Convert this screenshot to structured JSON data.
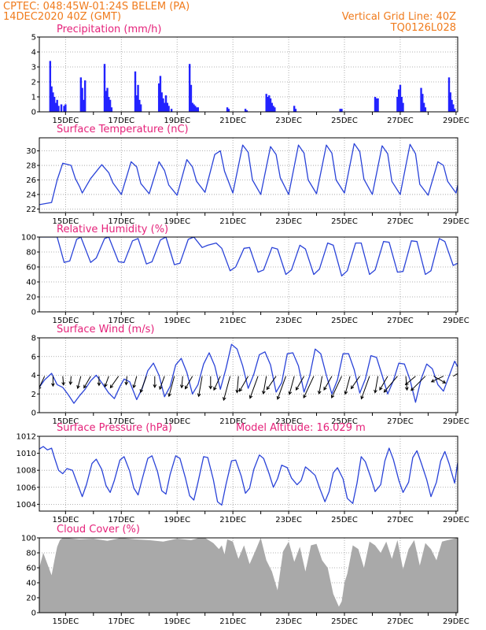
{
  "header": {
    "line1": "CPTEC:   048:45W-01:24S   BELEM (PA)",
    "line2": "14DEC2020 40Z (GMT)",
    "right1": "Vertical Grid Line: 40Z",
    "right2": "TQ0126L028"
  },
  "colors": {
    "header": "#f07b1c",
    "panel_title": "#e5227a",
    "series_line": "#2a43d8",
    "bar": "#2323ff",
    "cloud_fill": "#a9a9a9",
    "wind_arrow": "#000000"
  },
  "x_axis": {
    "tick_labels": [
      "15DEC",
      "17DEC",
      "19DEC",
      "21DEC",
      "23DEC",
      "25DEC",
      "27DEC",
      "29DEC"
    ],
    "tick_days": [
      15,
      17,
      19,
      21,
      23,
      25,
      27,
      29
    ],
    "minor_tick_days": [
      16,
      18,
      20,
      22,
      24,
      26,
      28
    ],
    "range_days": [
      14.06,
      29.06
    ]
  },
  "chart_data": [
    {
      "id": "precip",
      "type": "bar",
      "title": "Precipitation (mm/h)",
      "ylim": [
        0,
        5
      ],
      "yticks": [
        0,
        1,
        2,
        3,
        4,
        5
      ],
      "grid": true,
      "x_units": "days (December 2020)",
      "x": [
        14.45,
        14.5,
        14.55,
        14.6,
        14.65,
        14.7,
        14.75,
        14.85,
        14.95,
        15.0,
        15.55,
        15.6,
        15.65,
        15.7,
        16.4,
        16.45,
        16.5,
        16.55,
        16.6,
        16.65,
        17.5,
        17.55,
        17.6,
        17.65,
        17.7,
        18.35,
        18.4,
        18.45,
        18.5,
        18.55,
        18.6,
        18.65,
        18.7,
        18.8,
        19.45,
        19.5,
        19.55,
        19.6,
        19.65,
        19.7,
        19.75,
        20.8,
        20.85,
        21.45,
        21.5,
        22.2,
        22.25,
        22.3,
        22.35,
        22.4,
        22.45,
        22.5,
        23.2,
        23.25,
        24.85,
        24.9,
        26.1,
        26.15,
        26.2,
        26.9,
        26.95,
        27.0,
        27.05,
        27.1,
        27.75,
        27.8,
        27.85,
        27.9,
        28.75,
        28.8,
        28.85,
        28.9,
        28.95
      ],
      "values": [
        3.4,
        1.7,
        1.3,
        1.0,
        0.6,
        0.8,
        0.4,
        0.5,
        0.4,
        0.5,
        2.3,
        1.6,
        0.8,
        2.1,
        3.2,
        1.4,
        1.6,
        1.0,
        0.8,
        0.3,
        2.7,
        1.1,
        1.8,
        0.8,
        0.5,
        1.9,
        2.4,
        1.3,
        0.9,
        0.6,
        1.1,
        0.6,
        0.4,
        0.2,
        3.2,
        1.8,
        0.6,
        0.5,
        0.4,
        0.3,
        0.3,
        0.3,
        0.2,
        0.2,
        0.1,
        1.2,
        1.0,
        1.1,
        0.9,
        0.6,
        0.4,
        0.3,
        0.4,
        0.2,
        0.2,
        0.2,
        1.0,
        0.9,
        0.9,
        1.0,
        1.5,
        1.8,
        1.0,
        0.6,
        1.6,
        1.2,
        0.6,
        0.3,
        2.3,
        1.3,
        0.8,
        0.5,
        0.2
      ]
    },
    {
      "id": "temp",
      "type": "line",
      "title": "Surface Temperature (nC)",
      "ylim": [
        21.5,
        31.8
      ],
      "yticks": [
        22,
        24,
        26,
        28,
        30
      ],
      "grid": true,
      "x_units": "days (December 2020)",
      "x": [
        14.06,
        14.5,
        14.7,
        14.9,
        15.2,
        15.35,
        15.5,
        15.6,
        15.9,
        16.3,
        16.55,
        16.7,
        17.0,
        17.35,
        17.55,
        17.7,
        18.0,
        18.35,
        18.55,
        18.7,
        19.0,
        19.35,
        19.55,
        19.7,
        20.0,
        20.35,
        20.55,
        20.7,
        21.0,
        21.35,
        21.55,
        21.7,
        22.0,
        22.35,
        22.55,
        22.7,
        23.0,
        23.35,
        23.55,
        23.7,
        24.0,
        24.35,
        24.55,
        24.7,
        25.0,
        25.35,
        25.55,
        25.7,
        26.0,
        26.35,
        26.55,
        26.7,
        27.0,
        27.35,
        27.55,
        27.7,
        28.0,
        28.35,
        28.55,
        28.7,
        29.0,
        29.06
      ],
      "values": [
        22.6,
        22.9,
        26.0,
        28.3,
        28.0,
        26.2,
        25.1,
        24.2,
        26.2,
        28.1,
        27.0,
        25.6,
        24.0,
        28.5,
        27.8,
        25.5,
        24.1,
        28.5,
        27.3,
        25.3,
        23.9,
        28.8,
        27.8,
        25.8,
        24.3,
        29.5,
        30.0,
        27.2,
        24.2,
        30.8,
        29.8,
        26.0,
        24.0,
        30.6,
        29.5,
        26.3,
        24.0,
        30.8,
        29.7,
        26.0,
        24.1,
        30.8,
        29.7,
        26.0,
        24.2,
        31.0,
        29.9,
        26.1,
        24.0,
        30.7,
        29.6,
        25.8,
        24.0,
        30.9,
        29.6,
        25.4,
        23.9,
        28.5,
        28.0,
        25.8,
        24.2,
        25.3
      ]
    },
    {
      "id": "rh",
      "type": "line",
      "title": "Relative Humidity (%)",
      "ylim": [
        0,
        100
      ],
      "yticks": [
        0,
        20,
        40,
        60,
        80,
        100
      ],
      "grid": true,
      "x_units": "days (December 2020)",
      "x": [
        14.06,
        14.5,
        14.7,
        14.95,
        15.15,
        15.4,
        15.55,
        15.9,
        16.1,
        16.4,
        16.55,
        16.9,
        17.1,
        17.4,
        17.6,
        17.9,
        18.1,
        18.4,
        18.6,
        18.9,
        19.1,
        19.4,
        19.6,
        19.9,
        20.1,
        20.4,
        20.6,
        20.9,
        21.1,
        21.4,
        21.6,
        21.9,
        22.1,
        22.4,
        22.6,
        22.9,
        23.1,
        23.4,
        23.6,
        23.9,
        24.1,
        24.4,
        24.6,
        24.9,
        25.1,
        25.4,
        25.6,
        25.9,
        26.1,
        26.4,
        26.6,
        26.9,
        27.1,
        27.4,
        27.6,
        27.9,
        28.1,
        28.4,
        28.6,
        28.9,
        29.06
      ],
      "values": [
        100,
        100,
        100,
        66,
        68,
        97,
        100,
        66,
        72,
        98,
        100,
        67,
        66,
        95,
        98,
        64,
        67,
        96,
        100,
        63,
        65,
        97,
        100,
        86,
        89,
        92,
        85,
        55,
        60,
        85,
        86,
        53,
        56,
        86,
        84,
        50,
        56,
        89,
        84,
        50,
        57,
        92,
        89,
        48,
        55,
        92,
        92,
        50,
        56,
        94,
        93,
        53,
        54,
        95,
        94,
        50,
        55,
        98,
        94,
        62,
        65
      ]
    },
    {
      "id": "wind",
      "type": "line",
      "title": "Surface Wind (m/s)",
      "ylim": [
        0,
        8
      ],
      "yticks": [
        0,
        2,
        4,
        6,
        8
      ],
      "grid": true,
      "x_units": "days (December 2020)",
      "x": [
        14.06,
        14.25,
        14.5,
        14.7,
        14.9,
        15.1,
        15.3,
        15.5,
        15.7,
        15.9,
        16.1,
        16.3,
        16.55,
        16.75,
        16.95,
        17.1,
        17.3,
        17.55,
        17.75,
        17.95,
        18.15,
        18.35,
        18.55,
        18.75,
        18.95,
        19.15,
        19.35,
        19.55,
        19.75,
        19.95,
        20.15,
        20.35,
        20.55,
        20.75,
        20.95,
        21.15,
        21.35,
        21.55,
        21.75,
        21.95,
        22.15,
        22.35,
        22.55,
        22.75,
        22.95,
        23.15,
        23.35,
        23.55,
        23.75,
        23.95,
        24.15,
        24.35,
        24.55,
        24.75,
        24.95,
        25.15,
        25.35,
        25.55,
        25.75,
        25.95,
        26.15,
        26.35,
        26.55,
        26.75,
        26.95,
        27.15,
        27.35,
        27.55,
        27.75,
        27.95,
        28.15,
        28.35,
        28.55,
        28.75,
        28.95,
        29.06
      ],
      "values": [
        2.7,
        3.5,
        4.2,
        3.0,
        2.7,
        1.9,
        1.0,
        1.8,
        2.5,
        3.4,
        4.0,
        3.2,
        2.1,
        1.5,
        2.8,
        3.6,
        3.3,
        1.4,
        2.6,
        4.5,
        5.3,
        4.0,
        1.7,
        2.8,
        5.1,
        5.8,
        4.3,
        2.0,
        3.0,
        5.2,
        6.4,
        5.0,
        2.5,
        4.7,
        7.3,
        6.8,
        5.0,
        2.6,
        4.1,
        6.2,
        6.5,
        5.1,
        2.2,
        3.2,
        6.3,
        6.4,
        5.0,
        2.2,
        3.9,
        6.8,
        6.3,
        4.0,
        2.0,
        3.5,
        6.3,
        6.3,
        4.6,
        2.1,
        3.6,
        6.1,
        5.9,
        4.0,
        2.0,
        3.4,
        5.3,
        5.2,
        3.5,
        1.1,
        3.6,
        5.2,
        4.7,
        3.0,
        2.3,
        3.9,
        5.5,
        4.9
      ]
    },
    {
      "id": "pressure",
      "type": "line",
      "title": "Surface Pressure (hPa)",
      "subtitle": "Model Altitude: 16.029 m",
      "ylim": [
        1003.2,
        1012
      ],
      "yticks": [
        1004,
        1006,
        1008,
        1010,
        1012
      ],
      "grid": true,
      "x_units": "days (December 2020)",
      "x": [
        14.06,
        14.2,
        14.35,
        14.5,
        14.6,
        14.75,
        14.9,
        15.05,
        15.25,
        15.45,
        15.6,
        15.75,
        15.95,
        16.1,
        16.3,
        16.45,
        16.6,
        16.75,
        16.95,
        17.1,
        17.3,
        17.45,
        17.6,
        17.75,
        17.95,
        18.1,
        18.3,
        18.45,
        18.6,
        18.75,
        18.95,
        19.1,
        19.3,
        19.45,
        19.6,
        19.75,
        19.95,
        20.1,
        20.3,
        20.45,
        20.6,
        20.75,
        20.95,
        21.1,
        21.3,
        21.45,
        21.6,
        21.75,
        21.95,
        22.1,
        22.3,
        22.45,
        22.6,
        22.75,
        22.95,
        23.1,
        23.3,
        23.45,
        23.6,
        23.75,
        23.95,
        24.1,
        24.3,
        24.45,
        24.6,
        24.75,
        24.95,
        25.1,
        25.3,
        25.45,
        25.6,
        25.75,
        25.95,
        26.1,
        26.3,
        26.45,
        26.6,
        26.75,
        26.95,
        27.1,
        27.3,
        27.45,
        27.6,
        27.75,
        27.95,
        28.1,
        28.3,
        28.45,
        28.6,
        28.75,
        28.95,
        29.06
      ],
      "values": [
        1010.5,
        1010.8,
        1010.4,
        1010.6,
        1009.5,
        1008.0,
        1007.6,
        1008.2,
        1008.0,
        1006.2,
        1004.9,
        1006.3,
        1008.8,
        1009.3,
        1008.1,
        1006.2,
        1005.4,
        1006.8,
        1009.2,
        1009.6,
        1007.9,
        1005.9,
        1005.1,
        1007.0,
        1009.4,
        1009.7,
        1007.8,
        1005.6,
        1005.2,
        1007.5,
        1009.7,
        1009.4,
        1007.1,
        1005.0,
        1004.5,
        1006.6,
        1009.6,
        1009.5,
        1006.9,
        1004.3,
        1003.9,
        1006.3,
        1009.1,
        1009.2,
        1007.3,
        1005.3,
        1005.9,
        1008.1,
        1009.8,
        1009.4,
        1007.6,
        1006.0,
        1007.0,
        1008.6,
        1008.3,
        1007.1,
        1006.3,
        1006.8,
        1008.4,
        1008.0,
        1007.4,
        1006.0,
        1004.3,
        1005.5,
        1007.7,
        1008.3,
        1007.0,
        1004.7,
        1004.1,
        1006.5,
        1009.6,
        1009.0,
        1007.1,
        1005.5,
        1006.3,
        1009.1,
        1010.6,
        1009.3,
        1006.8,
        1005.4,
        1006.6,
        1009.5,
        1010.3,
        1008.9,
        1006.9,
        1004.9,
        1006.6,
        1009.1,
        1010.2,
        1008.8,
        1006.5,
        1008.9
      ]
    },
    {
      "id": "cloud",
      "type": "area",
      "title": "Cloud Cover (%)",
      "ylim": [
        0,
        100
      ],
      "yticks": [
        0,
        20,
        40,
        60,
        80,
        100
      ],
      "grid": true,
      "x_units": "days (December 2020)",
      "x": [
        14.06,
        14.2,
        14.35,
        14.5,
        14.6,
        14.7,
        14.8,
        14.9,
        15.0,
        15.5,
        16.0,
        16.5,
        17.0,
        17.5,
        18.0,
        18.5,
        19.0,
        19.5,
        19.8,
        20.0,
        20.3,
        20.5,
        20.6,
        20.7,
        20.8,
        21.0,
        21.2,
        21.4,
        21.6,
        21.8,
        22.0,
        22.2,
        22.4,
        22.6,
        22.8,
        23.0,
        23.2,
        23.4,
        23.6,
        23.8,
        24.0,
        24.2,
        24.4,
        24.6,
        24.8,
        24.9,
        25.0,
        25.1,
        25.3,
        25.5,
        25.7,
        25.9,
        26.1,
        26.3,
        26.5,
        26.7,
        26.9,
        27.1,
        27.3,
        27.5,
        27.7,
        27.9,
        28.1,
        28.3,
        28.5,
        28.7,
        29.06
      ],
      "values": [
        60,
        80,
        65,
        50,
        70,
        88,
        97,
        100,
        100,
        98,
        99,
        96,
        100,
        98,
        97,
        95,
        99,
        97,
        100,
        100,
        93,
        85,
        90,
        78,
        98,
        95,
        72,
        90,
        65,
        82,
        100,
        70,
        55,
        30,
        82,
        95,
        68,
        88,
        55,
        90,
        92,
        70,
        60,
        25,
        8,
        15,
        40,
        52,
        90,
        85,
        60,
        95,
        90,
        80,
        95,
        72,
        97,
        58,
        85,
        97,
        63,
        93,
        85,
        70,
        95,
        97,
        100
      ]
    }
  ],
  "wind_arrows": {
    "x": [
      14.25,
      14.55,
      14.9,
      15.2,
      15.55,
      15.9,
      16.2,
      16.55,
      16.9,
      17.2,
      17.55,
      17.9,
      18.2,
      18.55,
      18.9,
      19.2,
      19.55,
      19.9,
      20.2,
      20.55,
      20.9,
      21.2,
      21.55,
      21.9,
      22.2,
      22.55,
      22.9,
      23.2,
      23.55,
      23.9,
      24.2,
      24.55,
      24.9,
      25.2,
      25.55,
      25.9,
      26.2,
      26.55,
      26.9,
      27.2,
      27.55,
      27.9,
      28.2,
      28.55,
      28.9
    ],
    "speed": [
      3.2,
      1.8,
      1.5,
      1.3,
      2.6,
      2.9,
      1.6,
      2.2,
      3.1,
      1.4,
      2.4,
      4.0,
      2.2,
      3.0,
      5.1,
      2.3,
      3.2,
      5.0,
      2.6,
      3.4,
      6.3,
      3.8,
      4.1,
      5.9,
      4.2,
      3.7,
      6.2,
      4.5,
      3.6,
      6.0,
      4.2,
      3.6,
      6.0,
      4.4,
      3.4,
      6.1,
      3.9,
      3.6,
      5.1,
      3.0,
      2.8,
      4.9,
      2.9,
      2.8,
      2.2
    ],
    "dir_to_deg": [
      205,
      180,
      175,
      185,
      195,
      210,
      180,
      200,
      215,
      185,
      195,
      200,
      180,
      200,
      195,
      185,
      210,
      190,
      180,
      205,
      195,
      185,
      210,
      200,
      190,
      215,
      200,
      195,
      210,
      205,
      190,
      210,
      205,
      195,
      215,
      200,
      190,
      210,
      220,
      175,
      230,
      225,
      120,
      245,
      60
    ]
  }
}
